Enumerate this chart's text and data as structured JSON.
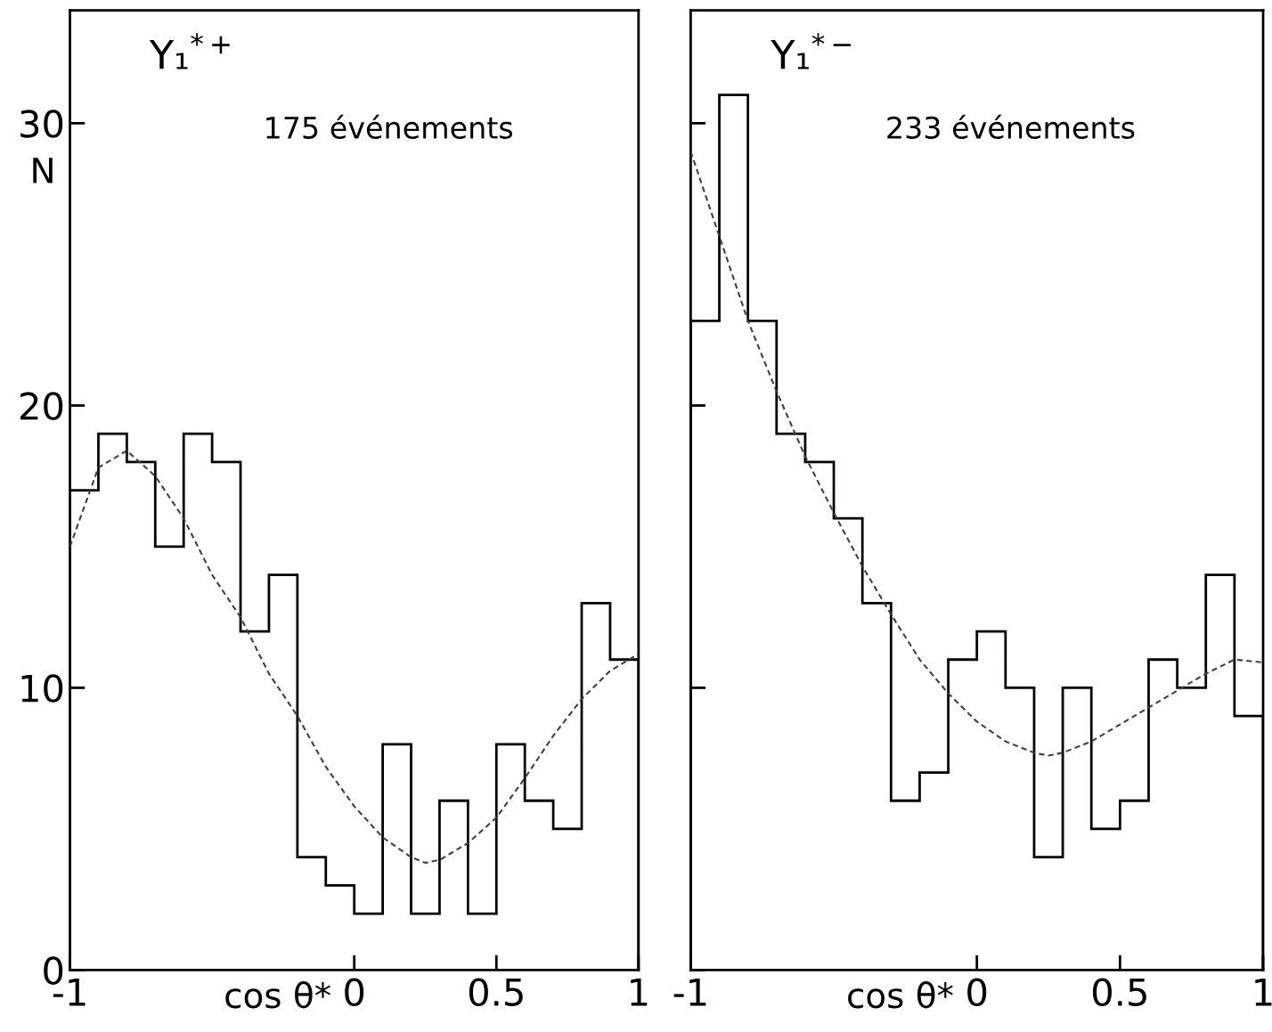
{
  "chart_data": [
    {
      "type": "histogram",
      "title": "Y₁$^{*+}$",
      "subtitle": "175 événements",
      "xlabel": "cos θ*",
      "ylabel": "N",
      "bins": [
        -1,
        -0.9,
        -0.8,
        -0.7,
        -0.6,
        -0.5,
        -0.4,
        -0.3,
        -0.2,
        -0.1,
        0,
        0.1,
        0.2,
        0.3,
        0.4,
        0.5,
        0.6,
        0.7,
        0.8,
        0.9,
        1
      ],
      "values": [
        17,
        19,
        18,
        15,
        19,
        18,
        12,
        14,
        4,
        3,
        2,
        8,
        2,
        6,
        2,
        8,
        6,
        5,
        13,
        11
      ],
      "color": "#000000",
      "series": [
        {
          "type": "line",
          "line_style": "dashed",
          "color": "#404040",
          "x": [
            -1,
            -0.9,
            -0.8,
            -0.7,
            -0.6,
            -0.5,
            -0.4,
            -0.3,
            -0.2,
            -0.1,
            0,
            0.1,
            0.2,
            0.25,
            0.3,
            0.4,
            0.5,
            0.6,
            0.7,
            0.8,
            0.9,
            1
          ],
          "values": [
            15,
            17.8,
            18.4,
            17.5,
            16,
            14,
            12.5,
            10.5,
            9,
            7.2,
            5.8,
            4.7,
            4,
            3.8,
            3.9,
            4.5,
            5.4,
            6.8,
            8.3,
            9.6,
            10.6,
            11.2
          ]
        }
      ],
      "xlim": [
        -1,
        1
      ],
      "ylim": [
        0,
        34
      ],
      "xticks": [
        -1,
        0,
        {
          "value": 0.5,
          "label": "0.5"
        },
        1
      ],
      "yticks": [
        0,
        10,
        20,
        30
      ],
      "grid": false
    },
    {
      "type": "histogram",
      "title": "Y₁$^{*−}$",
      "subtitle": "233 événements",
      "xlabel": "cos θ*",
      "bins": [
        -1,
        -0.9,
        -0.8,
        -0.7,
        -0.6,
        -0.5,
        -0.4,
        -0.3,
        -0.2,
        -0.1,
        0,
        0.1,
        0.2,
        0.3,
        0.4,
        0.5,
        0.6,
        0.7,
        0.8,
        0.9,
        1
      ],
      "values": [
        23,
        31,
        23,
        19,
        18,
        16,
        13,
        6,
        7,
        11,
        12,
        10,
        4,
        10,
        5,
        6,
        11,
        10,
        14,
        9
      ],
      "color": "#000000",
      "series": [
        {
          "type": "line",
          "line_style": "dashed",
          "color": "#404040",
          "x": [
            -1,
            -0.9,
            -0.8,
            -0.7,
            -0.6,
            -0.5,
            -0.4,
            -0.3,
            -0.2,
            -0.1,
            0,
            0.1,
            0.2,
            0.25,
            0.3,
            0.4,
            0.5,
            0.6,
            0.7,
            0.8,
            0.9,
            1
          ],
          "values": [
            29,
            26,
            23,
            20.5,
            18.2,
            16.2,
            14.3,
            12.6,
            11,
            9.8,
            8.8,
            8.1,
            7.7,
            7.6,
            7.7,
            8.1,
            8.7,
            9.3,
            9.9,
            10.5,
            11,
            10.9
          ]
        }
      ],
      "xlim": [
        -1,
        1
      ],
      "ylim": [
        0,
        34
      ],
      "xticks": [
        -1,
        0,
        {
          "value": 0.5,
          "label": "0.5"
        },
        1
      ],
      "yticks": [
        {
          "value": 0,
          "label": null
        },
        {
          "value": 10,
          "label": null
        },
        {
          "value": 20,
          "label": null
        },
        {
          "value": 30,
          "label": null
        }
      ],
      "tick_labels": "x",
      "grid": false
    }
  ]
}
